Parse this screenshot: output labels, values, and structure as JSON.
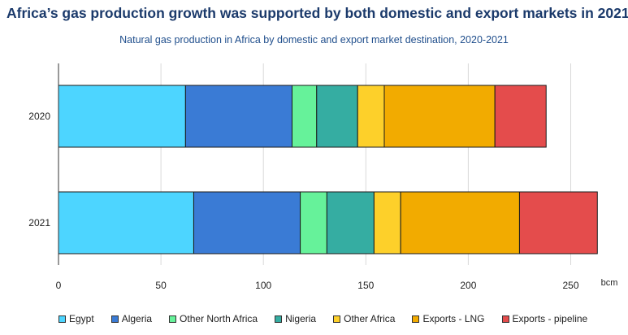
{
  "title": "Africa’s gas production growth was supported by both domestic and export markets in 2021",
  "subtitle": "Natural gas production in Africa by domestic and export market destination, 2020-2021",
  "chart_data": {
    "type": "bar",
    "orientation": "horizontal",
    "stacked": true,
    "categories": [
      "2020",
      "2021"
    ],
    "series": [
      {
        "name": "Egypt",
        "color": "#4dd5ff",
        "values": [
          62,
          66
        ]
      },
      {
        "name": "Algeria",
        "color": "#3a7bd5",
        "values": [
          52,
          52
        ]
      },
      {
        "name": "Other North Africa",
        "color": "#66f29a",
        "values": [
          12,
          13
        ]
      },
      {
        "name": "Nigeria",
        "color": "#35ada2",
        "values": [
          20,
          23
        ]
      },
      {
        "name": "Other Africa",
        "color": "#fdd02a",
        "values": [
          13,
          13
        ]
      },
      {
        "name": "Exports - LNG",
        "color": "#f2ab00",
        "values": [
          54,
          58
        ]
      },
      {
        "name": "Exports - pipeline",
        "color": "#e44c4c",
        "values": [
          25,
          38
        ]
      }
    ],
    "x_ticks": [
      "0",
      "50",
      "100",
      "150",
      "200",
      "250"
    ],
    "x_unit": "bcm",
    "xlim": [
      0,
      265
    ],
    "grid": "vertical",
    "legend_position": "bottom"
  }
}
